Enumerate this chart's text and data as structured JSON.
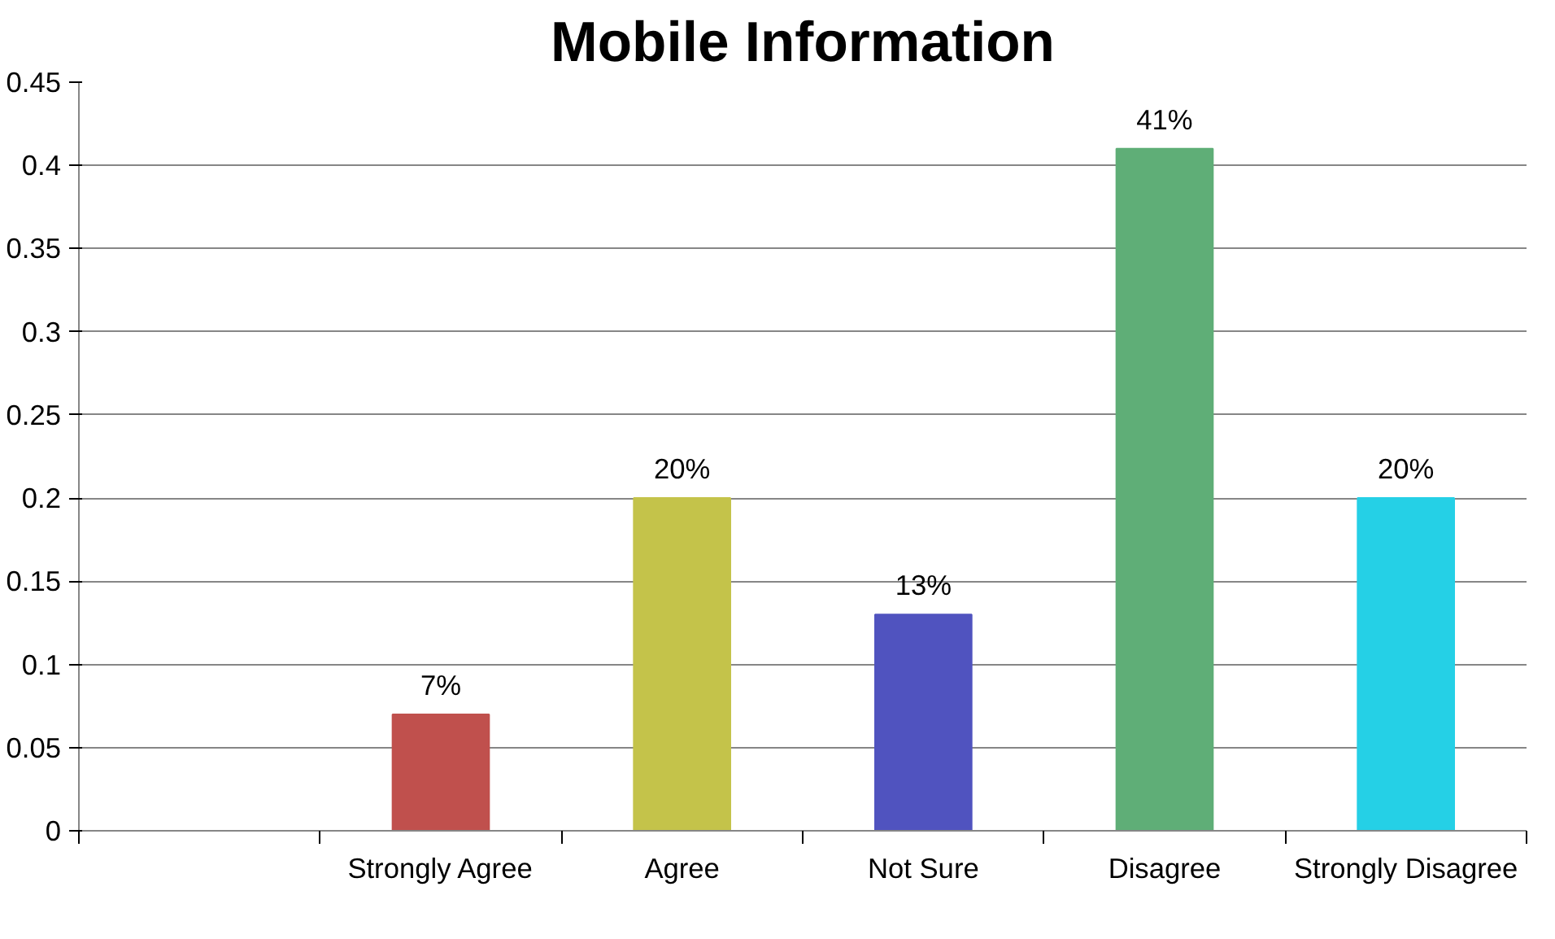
{
  "chart_data": {
    "type": "bar",
    "title": "Mobile Information",
    "categories": [
      null,
      "Strongly Agree",
      "Agree",
      "Not Sure",
      "Disagree",
      "Strongly Disagree"
    ],
    "values": [
      null,
      0.07,
      0.2,
      0.13,
      0.41,
      0.2
    ],
    "colors": [
      null,
      "#c0504d",
      "#c4c34a",
      "#5053bf",
      "#5fae77",
      "#25d0e6"
    ],
    "value_labels": [
      null,
      "7%",
      "20%",
      "13%",
      "41%",
      "20%"
    ],
    "ylim": [
      0,
      0.45
    ],
    "yticks": [
      0,
      0.05,
      0.1,
      0.15,
      0.2,
      0.25,
      0.3,
      0.35,
      0.4,
      0.45
    ],
    "grid": "y"
  }
}
